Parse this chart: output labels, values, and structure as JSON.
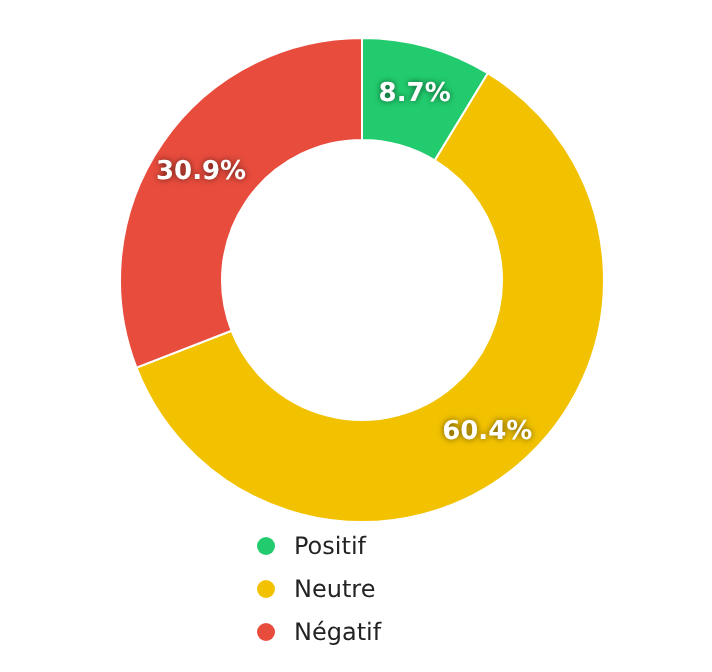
{
  "chart_data": {
    "type": "donut",
    "categories": [
      "Positif",
      "Neutre",
      "Négatif"
    ],
    "values": [
      8.7,
      60.4,
      30.9
    ],
    "colors": [
      "#22cc6e",
      "#f2c200",
      "#e84c3d"
    ],
    "value_labels": [
      "8.7%",
      "60.4%",
      "30.9%"
    ],
    "legend": "bottom"
  }
}
